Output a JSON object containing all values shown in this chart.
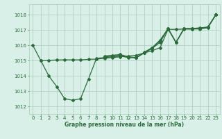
{
  "xlabel": "Graphe pression niveau de la mer (hPa)",
  "xlim": [
    -0.5,
    23.5
  ],
  "ylim": [
    1011.5,
    1018.7
  ],
  "yticks": [
    1012,
    1013,
    1014,
    1015,
    1016,
    1017,
    1018
  ],
  "xticks": [
    0,
    1,
    2,
    3,
    4,
    5,
    6,
    7,
    8,
    9,
    10,
    11,
    12,
    13,
    14,
    15,
    16,
    17,
    18,
    19,
    20,
    21,
    22,
    23
  ],
  "bg_color": "#d8f0e8",
  "grid_color": "#aaccbb",
  "line_color": "#2d6b3c",
  "line1_x": [
    0,
    1,
    2,
    3,
    4,
    5,
    6,
    7,
    8,
    9,
    10,
    11,
    12,
    13,
    14,
    15,
    16,
    17,
    18,
    19,
    20,
    21,
    22,
    23
  ],
  "line1_y": [
    1016.0,
    1015.0,
    1014.0,
    1013.3,
    1012.5,
    1012.4,
    1012.5,
    1013.8,
    1015.15,
    1015.2,
    1015.25,
    1015.3,
    1015.2,
    1015.2,
    1015.5,
    1015.8,
    1016.2,
    1017.1,
    1016.2,
    1017.1,
    1017.1,
    1017.1,
    1017.2,
    1018.0
  ],
  "line2_x": [
    1,
    2,
    3,
    4,
    5,
    6,
    7,
    8,
    9,
    10,
    11,
    12,
    13,
    14,
    15,
    16,
    17,
    18,
    19,
    20,
    21,
    22,
    23
  ],
  "line2_y": [
    1015.0,
    1015.02,
    1015.04,
    1015.05,
    1015.05,
    1015.05,
    1015.08,
    1015.1,
    1015.15,
    1015.2,
    1015.25,
    1015.3,
    1015.35,
    1015.5,
    1015.65,
    1015.85,
    1017.05,
    1017.05,
    1017.07,
    1017.07,
    1017.08,
    1017.15,
    1018.0
  ],
  "line3_x": [
    9,
    10,
    11,
    12,
    13,
    14,
    15,
    16,
    17,
    18,
    19,
    20,
    21,
    22,
    23
  ],
  "line3_y": [
    1015.3,
    1015.35,
    1015.4,
    1015.25,
    1015.2,
    1015.55,
    1015.85,
    1016.35,
    1017.1,
    1016.2,
    1017.1,
    1017.1,
    1017.15,
    1017.2,
    1018.0
  ],
  "line4_x": [
    9,
    10,
    11,
    12,
    13,
    14,
    15,
    16,
    17,
    18,
    19,
    20,
    21,
    22,
    23
  ],
  "line4_y": [
    1015.25,
    1015.3,
    1015.35,
    1015.22,
    1015.18,
    1015.52,
    1015.82,
    1016.3,
    1017.07,
    1016.18,
    1017.08,
    1017.08,
    1017.12,
    1017.18,
    1018.0
  ]
}
